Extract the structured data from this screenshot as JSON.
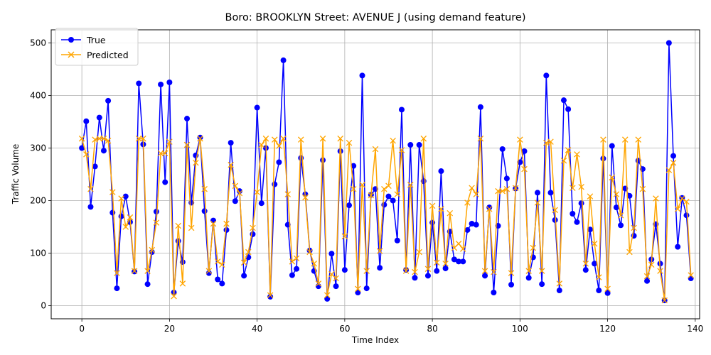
{
  "chart_data": {
    "type": "line",
    "title": "Boro: BROOKLYN Street: AVENUE J (using demand feature)",
    "xlabel": "Time Index",
    "ylabel": "Traffic Volume",
    "xlim": [
      -7,
      141
    ],
    "ylim": [
      -25,
      525
    ],
    "xticks": [
      0,
      20,
      40,
      60,
      80,
      100,
      120,
      140
    ],
    "yticks": [
      0,
      100,
      200,
      300,
      400,
      500
    ],
    "grid": true,
    "legend_position": "top-left",
    "series": [
      {
        "name": "True",
        "color": "#0000ff",
        "marker": "circle",
        "values": [
          300,
          351,
          188,
          265,
          358,
          295,
          390,
          177,
          33,
          170,
          208,
          159,
          65,
          423,
          307,
          41,
          102,
          179,
          421,
          235,
          425,
          25,
          123,
          83,
          356,
          196,
          286,
          320,
          180,
          62,
          162,
          50,
          42,
          144,
          310,
          199,
          218,
          57,
          92,
          136,
          377,
          195,
          300,
          17,
          231,
          273,
          467,
          154,
          58,
          70,
          281,
          212,
          105,
          66,
          37,
          277,
          13,
          99,
          37,
          294,
          68,
          191,
          266,
          25,
          438,
          33,
          211,
          222,
          72,
          192,
          208,
          200,
          124,
          373,
          68,
          306,
          53,
          306,
          237,
          57,
          158,
          66,
          256,
          71,
          141,
          88,
          84,
          84,
          144,
          156,
          154,
          378,
          57,
          187,
          25,
          152,
          298,
          242,
          40,
          223,
          273,
          294,
          53,
          92,
          215,
          41,
          438,
          215,
          163,
          29,
          391,
          374,
          175,
          159,
          195,
          68,
          145,
          80,
          29,
          280,
          24,
          304,
          187,
          153,
          223,
          209,
          133,
          276,
          260,
          47,
          88,
          155,
          80,
          10,
          500,
          285,
          112,
          205,
          172,
          52
        ]
      },
      {
        "name": "Predicted",
        "color": "#ffa500",
        "marker": "x",
        "values": [
          318,
          288,
          222,
          316,
          318,
          318,
          314,
          216,
          62,
          204,
          150,
          168,
          66,
          318,
          318,
          66,
          106,
          158,
          290,
          290,
          312,
          18,
          152,
          42,
          306,
          148,
          272,
          318,
          222,
          66,
          156,
          84,
          78,
          156,
          268,
          228,
          214,
          82,
          102,
          148,
          216,
          306,
          318,
          20,
          316,
          304,
          318,
          212,
          84,
          90,
          316,
          206,
          102,
          80,
          42,
          318,
          20,
          60,
          52,
          318,
          132,
          310,
          222,
          32,
          230,
          66,
          210,
          298,
          104,
          222,
          228,
          314,
          212,
          296,
          66,
          230,
          64,
          102,
          318,
          70,
          190,
          82,
          184,
          80,
          176,
          110,
          118,
          108,
          196,
          224,
          212,
          318,
          66,
          184,
          64,
          218,
          218,
          222,
          62,
          224,
          316,
          260,
          66,
          110,
          196,
          66,
          310,
          312,
          182,
          42,
          276,
          296,
          224,
          288,
          226,
          80,
          208,
          118,
          54,
          316,
          32,
          244,
          212,
          172,
          316,
          102,
          148,
          316,
          222,
          56,
          78,
          204,
          66,
          10,
          258,
          272,
          184,
          204,
          198,
          58
        ]
      }
    ]
  }
}
